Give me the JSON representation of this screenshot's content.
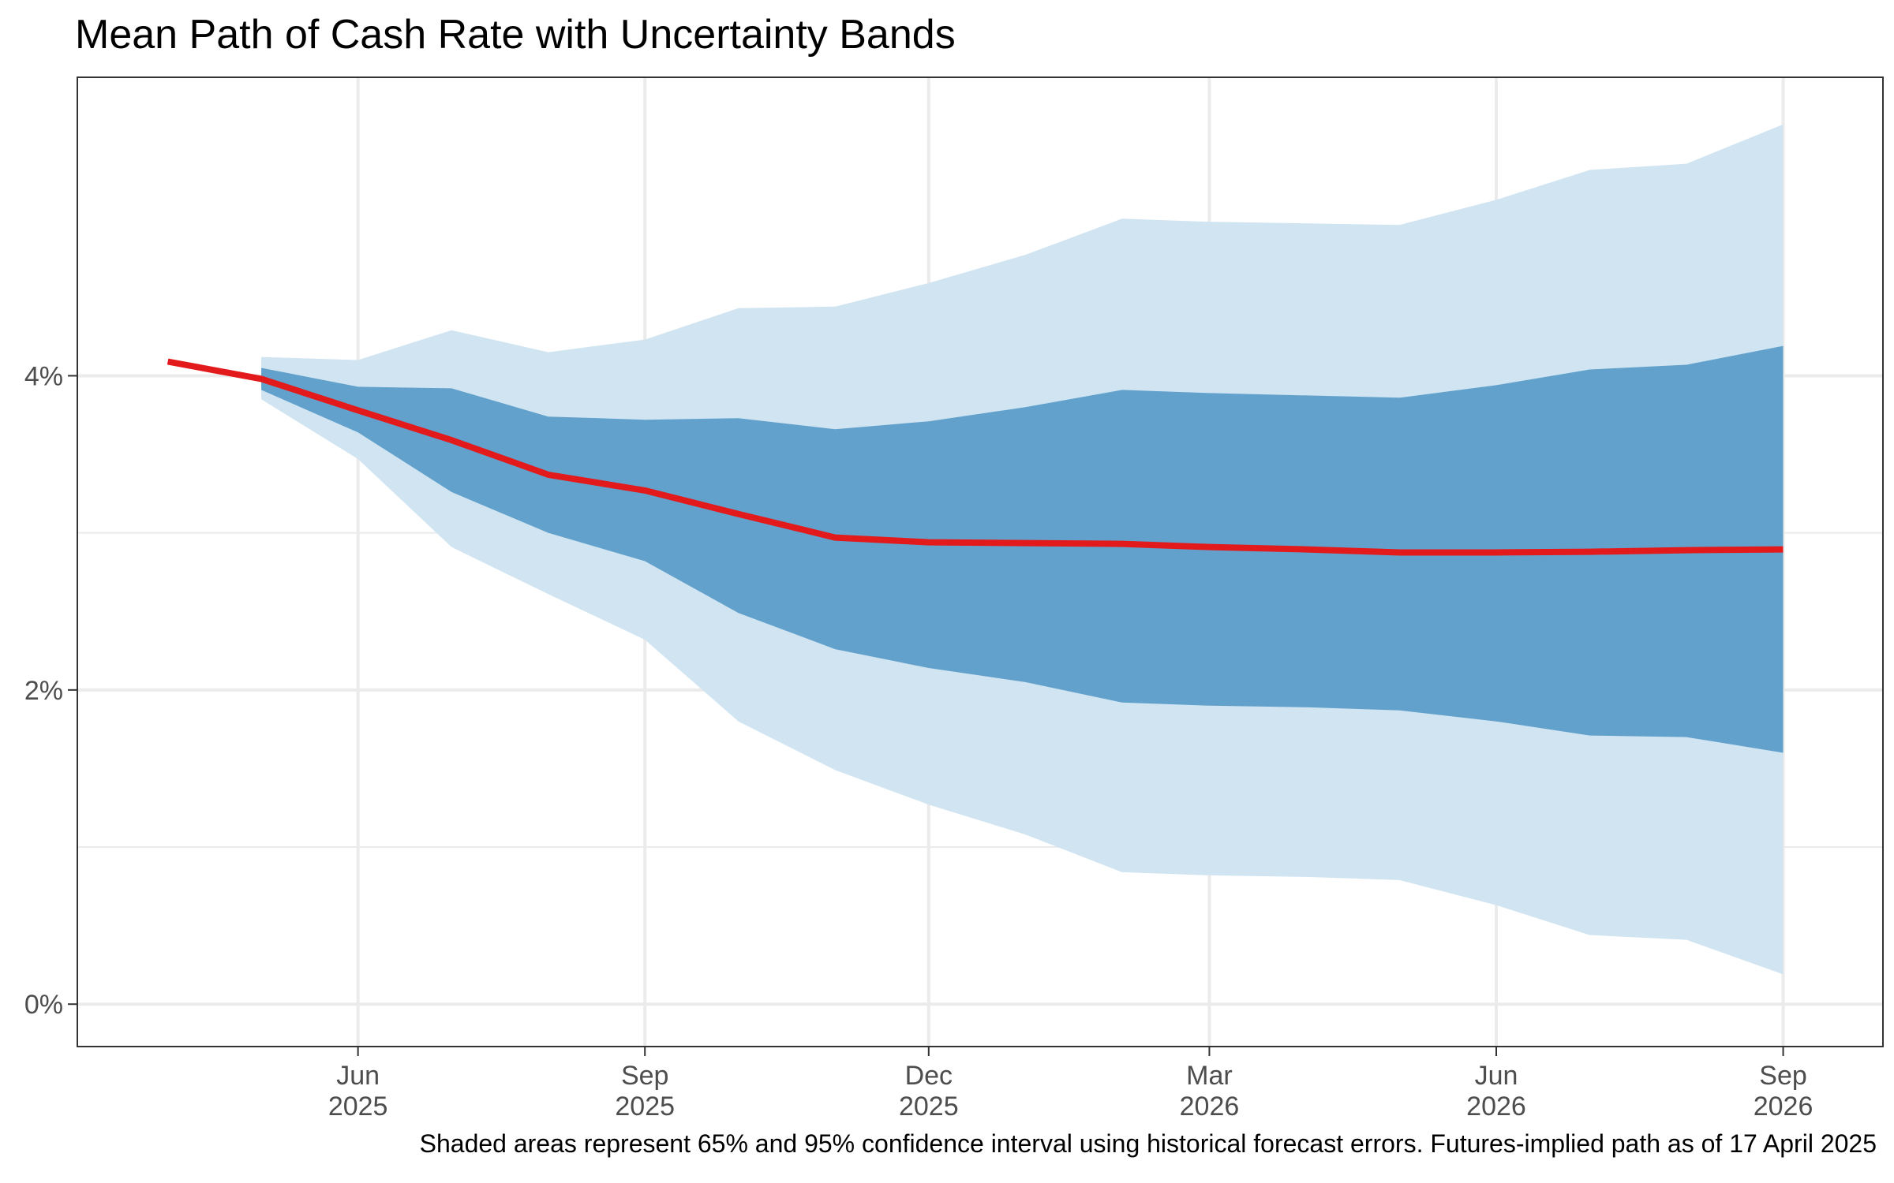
{
  "chart_data": {
    "type": "area",
    "title": "Mean Path of Cash Rate with Uncertainty Bands",
    "xlabel": "",
    "ylabel": "",
    "caption": "Shaded areas represent 65% and 95% confidence interval using historical forecast errors. Futures-implied path as of 17 April 2025",
    "x_ticks": [
      {
        "date": "2025-06-01",
        "label": [
          "Jun",
          "2025"
        ]
      },
      {
        "date": "2025-09-01",
        "label": [
          "Sep",
          "2025"
        ]
      },
      {
        "date": "2025-12-01",
        "label": [
          "Dec",
          "2025"
        ]
      },
      {
        "date": "2026-03-01",
        "label": [
          "Mar",
          "2026"
        ]
      },
      {
        "date": "2026-06-01",
        "label": [
          "Jun",
          "2026"
        ]
      },
      {
        "date": "2026-09-01",
        "label": [
          "Sep",
          "2026"
        ]
      }
    ],
    "y_ticks": [
      {
        "value": 0,
        "label": "0%"
      },
      {
        "value": 2,
        "label": "2%"
      },
      {
        "value": 4,
        "label": "4%"
      }
    ],
    "xlim": [
      "2025-03-03",
      "2026-10-03"
    ],
    "ylim": [
      -0.27,
      5.9
    ],
    "grid": true,
    "colors": {
      "mean_line": "#e31a1c",
      "band_65": "#4f95c4",
      "band_95": "#d0e4f1",
      "grid": "#ebebeb",
      "panel_border": "#333333",
      "axis_text": "#4d4d4d"
    },
    "series": [
      {
        "role": "mean",
        "x": [
          "2025-04-01",
          "2025-05-01",
          "2025-06-01",
          "2025-07-01",
          "2025-08-01",
          "2025-09-01",
          "2025-10-01",
          "2025-11-01",
          "2025-12-01",
          "2026-01-01",
          "2026-02-01",
          "2026-03-01",
          "2026-04-01",
          "2026-05-01",
          "2026-06-01",
          "2026-07-01",
          "2026-08-01",
          "2026-09-01"
        ],
        "values": [
          4.09,
          3.98,
          3.78,
          3.59,
          3.37,
          3.27,
          3.12,
          2.97,
          2.94,
          2.935,
          2.93,
          2.91,
          2.895,
          2.875,
          2.875,
          2.88,
          2.89,
          2.895
        ]
      },
      {
        "role": "band_65",
        "x": [
          "2025-05-01",
          "2025-06-01",
          "2025-07-01",
          "2025-08-01",
          "2025-09-01",
          "2025-10-01",
          "2025-11-01",
          "2025-12-01",
          "2026-01-01",
          "2026-02-01",
          "2026-03-01",
          "2026-04-01",
          "2026-05-01",
          "2026-06-01",
          "2026-07-01",
          "2026-08-01",
          "2026-09-01"
        ],
        "lower": [
          3.91,
          3.64,
          3.26,
          3.0,
          2.82,
          2.49,
          2.26,
          2.14,
          2.05,
          1.92,
          1.9,
          1.89,
          1.87,
          1.8,
          1.71,
          1.7,
          1.6
        ],
        "upper": [
          4.05,
          3.93,
          3.92,
          3.74,
          3.72,
          3.73,
          3.66,
          3.71,
          3.8,
          3.91,
          3.89,
          3.875,
          3.86,
          3.94,
          4.04,
          4.07,
          4.19
        ]
      },
      {
        "role": "band_95",
        "x": [
          "2025-05-01",
          "2025-06-01",
          "2025-07-01",
          "2025-08-01",
          "2025-09-01",
          "2025-10-01",
          "2025-11-01",
          "2025-12-01",
          "2026-01-01",
          "2026-02-01",
          "2026-03-01",
          "2026-04-01",
          "2026-05-01",
          "2026-06-01",
          "2026-07-01",
          "2026-08-01",
          "2026-09-01"
        ],
        "lower": [
          3.85,
          3.47,
          2.91,
          2.61,
          2.32,
          1.8,
          1.49,
          1.27,
          1.08,
          0.84,
          0.82,
          0.81,
          0.79,
          0.63,
          0.44,
          0.41,
          0.19
        ],
        "upper": [
          4.12,
          4.1,
          4.29,
          4.15,
          4.23,
          4.43,
          4.44,
          4.59,
          4.77,
          5.0,
          4.98,
          4.97,
          4.96,
          5.12,
          5.31,
          5.35,
          5.6
        ]
      }
    ]
  }
}
